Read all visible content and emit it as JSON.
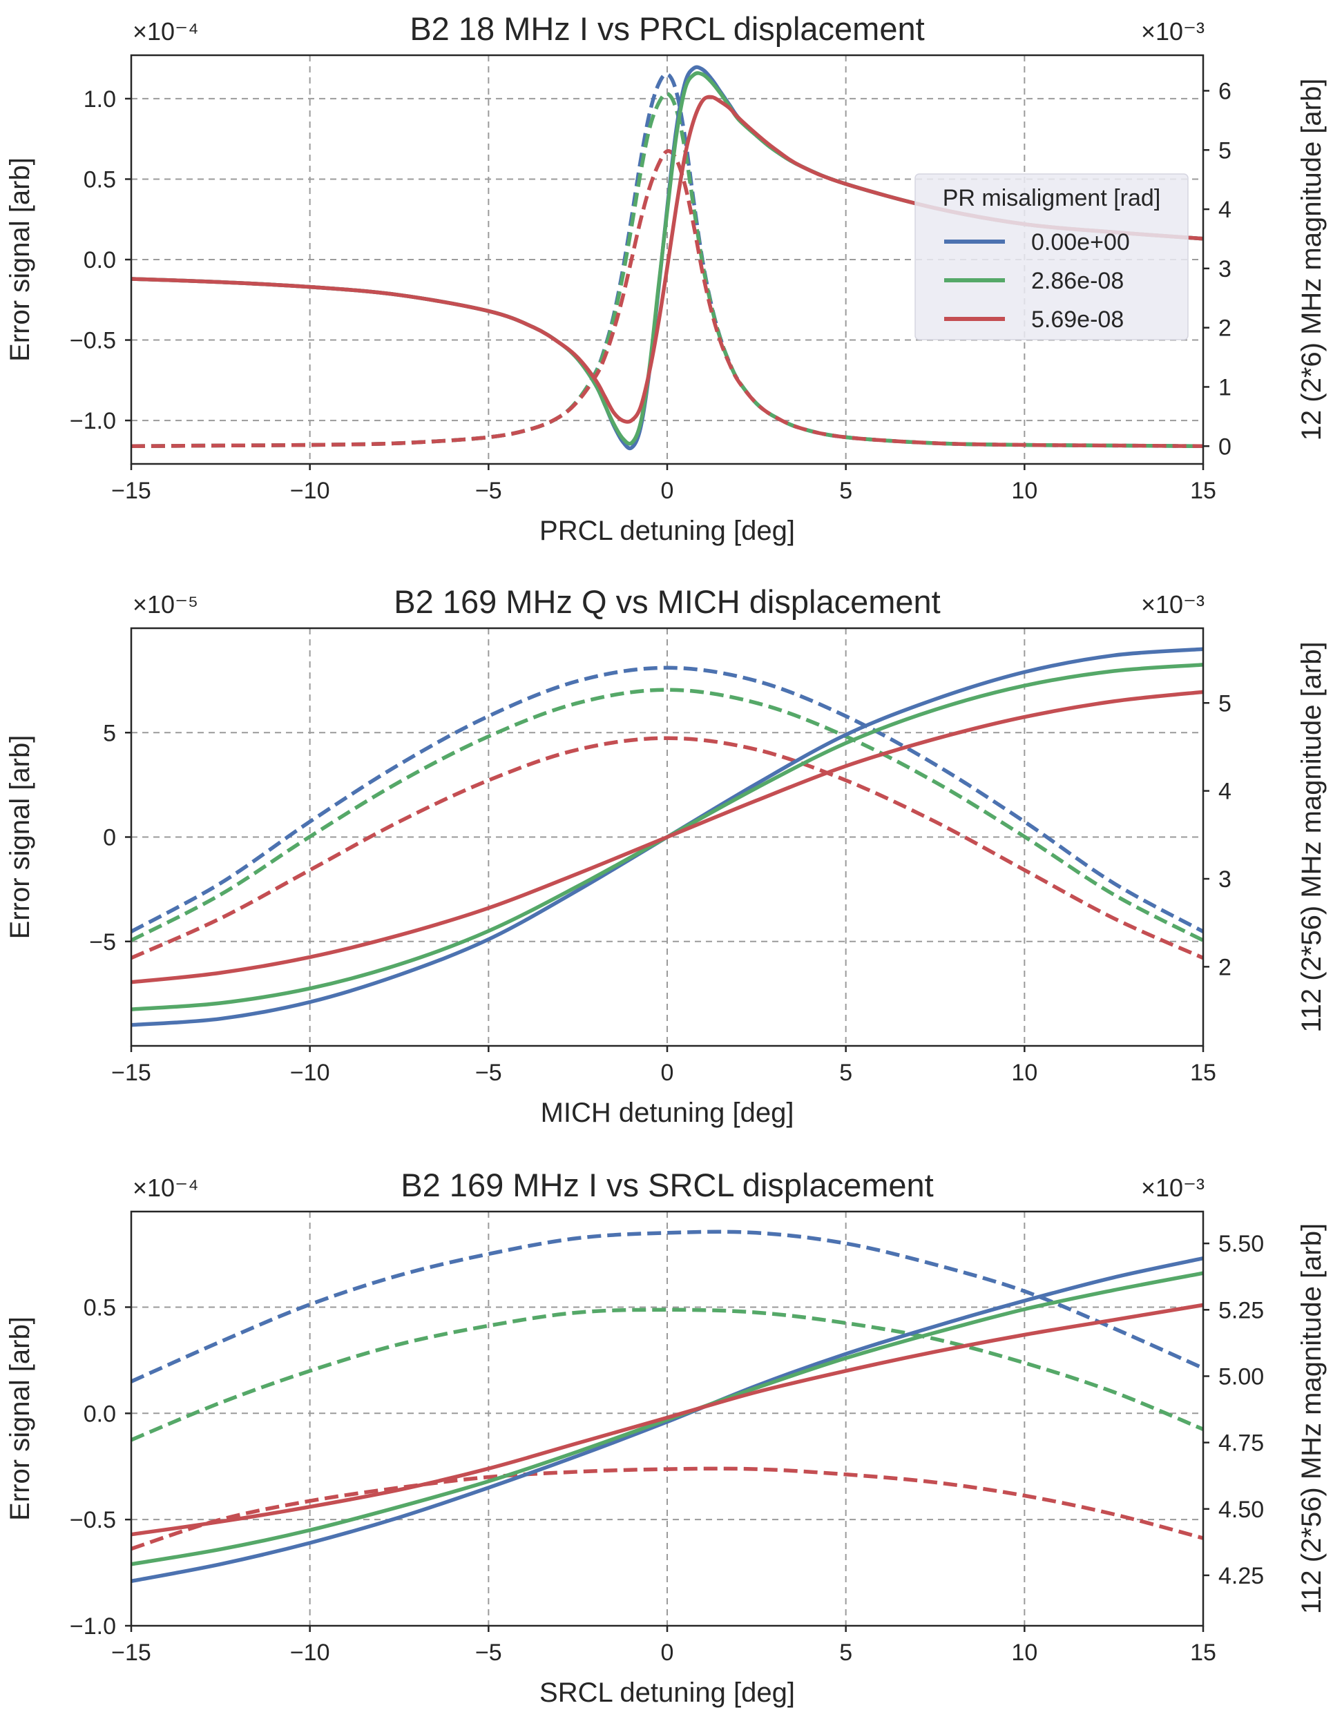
{
  "figure": {
    "legend": {
      "title": "PR misaligment [rad]",
      "entries": [
        "0.00e+00",
        "2.86e-08",
        "5.69e-08"
      ],
      "placement": "center-right of top panel"
    },
    "series_colors": [
      "#4c72b0",
      "#55a868",
      "#c44e52"
    ],
    "styles": {
      "error_signal": "solid",
      "magnitude": "dashed"
    }
  },
  "chart_data": [
    {
      "type": "line",
      "title": "B2 18 MHz I vs PRCL displacement",
      "xlabel": "PRCL detuning [deg]",
      "ylabel": "Error signal [arb]",
      "y2label": "12 (2*6) MHz magnitude [arb]",
      "xlim": [
        -15,
        15
      ],
      "ylim": [
        -1.27,
        1.27
      ],
      "y2lim": [
        -0.3,
        6.6
      ],
      "left_multiplier": "×10⁻⁴",
      "right_multiplier": "×10⁻³",
      "xticks": [
        -15,
        -10,
        -5,
        0,
        5,
        10,
        15
      ],
      "xtick_labels": [
        "−15",
        "−10",
        "−5",
        "0",
        "5",
        "10",
        "15"
      ],
      "yticks": [
        -1.0,
        -0.5,
        0.0,
        0.5,
        1.0
      ],
      "ytick_labels": [
        "−1.0",
        "−0.5",
        "0.0",
        "0.5",
        "1.0"
      ],
      "y2ticks": [
        0,
        1,
        2,
        3,
        4,
        5,
        6
      ],
      "y2tick_labels": [
        "0",
        "1",
        "2",
        "3",
        "4",
        "5",
        "6"
      ],
      "grid": true,
      "x": [
        -15,
        -12.5,
        -10,
        -7.5,
        -5,
        -3.75,
        -3,
        -2.5,
        -2,
        -1.75,
        -1.5,
        -1.25,
        -1,
        -0.75,
        -0.5,
        -0.25,
        0,
        0.25,
        0.5,
        0.75,
        1,
        1.25,
        1.5,
        1.75,
        2,
        2.5,
        3,
        3.75,
        5,
        7.5,
        10,
        12.5,
        15
      ],
      "series": [
        {
          "name": "0.00e+00",
          "axis": "left",
          "style": "solid",
          "values": [
            -0.12,
            -0.14,
            -0.17,
            -0.22,
            -0.32,
            -0.42,
            -0.52,
            -0.62,
            -0.78,
            -0.9,
            -1.03,
            -1.13,
            -1.17,
            -1.05,
            -0.7,
            -0.2,
            0.32,
            0.8,
            1.1,
            1.19,
            1.18,
            1.12,
            1.04,
            0.96,
            0.88,
            0.77,
            0.68,
            0.58,
            0.47,
            0.32,
            0.22,
            0.17,
            0.13
          ]
        },
        {
          "name": "2.86e-08",
          "axis": "left",
          "style": "solid",
          "values": [
            -0.12,
            -0.14,
            -0.17,
            -0.22,
            -0.32,
            -0.42,
            -0.52,
            -0.62,
            -0.78,
            -0.9,
            -1.02,
            -1.11,
            -1.14,
            -1.02,
            -0.68,
            -0.18,
            0.3,
            0.76,
            1.06,
            1.15,
            1.15,
            1.1,
            1.03,
            0.95,
            0.87,
            0.77,
            0.68,
            0.58,
            0.47,
            0.32,
            0.22,
            0.17,
            0.13
          ]
        },
        {
          "name": "5.69e-08",
          "axis": "left",
          "style": "solid",
          "values": [
            -0.12,
            -0.14,
            -0.17,
            -0.22,
            -0.32,
            -0.42,
            -0.52,
            -0.61,
            -0.75,
            -0.85,
            -0.95,
            -1.0,
            -1.0,
            -0.92,
            -0.7,
            -0.4,
            -0.05,
            0.32,
            0.65,
            0.87,
            0.99,
            1.01,
            0.98,
            0.94,
            0.88,
            0.78,
            0.69,
            0.58,
            0.47,
            0.32,
            0.22,
            0.17,
            0.13
          ]
        },
        {
          "name": "0.00e+00 magnitude",
          "axis": "right",
          "style": "dashed",
          "values": [
            0.0,
            0.01,
            0.02,
            0.05,
            0.15,
            0.3,
            0.5,
            0.78,
            1.25,
            1.65,
            2.2,
            2.95,
            3.85,
            4.8,
            5.6,
            6.1,
            6.28,
            6.0,
            5.2,
            4.1,
            3.1,
            2.35,
            1.8,
            1.4,
            1.1,
            0.72,
            0.5,
            0.3,
            0.15,
            0.05,
            0.02,
            0.01,
            0.0
          ]
        },
        {
          "name": "2.86e-08 magnitude",
          "axis": "right",
          "style": "dashed",
          "values": [
            0.0,
            0.01,
            0.02,
            0.05,
            0.15,
            0.3,
            0.5,
            0.78,
            1.24,
            1.62,
            2.15,
            2.85,
            3.7,
            4.6,
            5.35,
            5.78,
            5.95,
            5.7,
            5.0,
            4.0,
            3.05,
            2.33,
            1.79,
            1.4,
            1.1,
            0.72,
            0.5,
            0.3,
            0.15,
            0.05,
            0.02,
            0.01,
            0.0
          ]
        },
        {
          "name": "5.69e-08 magnitude",
          "axis": "right",
          "style": "dashed",
          "values": [
            0.0,
            0.01,
            0.02,
            0.05,
            0.15,
            0.3,
            0.5,
            0.76,
            1.18,
            1.5,
            1.95,
            2.5,
            3.15,
            3.8,
            4.35,
            4.75,
            4.98,
            4.85,
            4.4,
            3.7,
            2.9,
            2.25,
            1.75,
            1.38,
            1.09,
            0.72,
            0.5,
            0.3,
            0.15,
            0.05,
            0.02,
            0.01,
            0.0
          ]
        }
      ]
    },
    {
      "type": "line",
      "title": "B2 169 MHz Q vs MICH displacement",
      "xlabel": "MICH detuning [deg]",
      "ylabel": "Error signal [arb]",
      "y2label": "112 (2*56) MHz magnitude [arb]",
      "xlim": [
        -15,
        15
      ],
      "ylim": [
        -10,
        10
      ],
      "y2lim": [
        1.1,
        5.85
      ],
      "left_multiplier": "×10⁻⁵",
      "right_multiplier": "×10⁻³",
      "xticks": [
        -15,
        -10,
        -5,
        0,
        5,
        10,
        15
      ],
      "xtick_labels": [
        "−15",
        "−10",
        "−5",
        "0",
        "5",
        "10",
        "15"
      ],
      "yticks": [
        -5,
        0,
        5
      ],
      "ytick_labels": [
        "−5",
        "0",
        "5"
      ],
      "y2ticks": [
        2,
        3,
        4,
        5
      ],
      "y2tick_labels": [
        "2",
        "3",
        "4",
        "5"
      ],
      "grid": true,
      "x": [
        -15,
        -12.5,
        -10,
        -7.5,
        -5,
        -2.5,
        0,
        2.5,
        5,
        7.5,
        10,
        12.5,
        15
      ],
      "series": [
        {
          "name": "0.00e+00",
          "axis": "left",
          "style": "solid",
          "values": [
            -9.0,
            -8.7,
            -7.9,
            -6.6,
            -4.9,
            -2.55,
            0.0,
            2.55,
            4.9,
            6.6,
            7.9,
            8.7,
            9.0
          ]
        },
        {
          "name": "2.86e-08",
          "axis": "left",
          "style": "solid",
          "values": [
            -8.25,
            -7.95,
            -7.25,
            -6.1,
            -4.5,
            -2.35,
            0.0,
            2.35,
            4.5,
            6.1,
            7.25,
            7.95,
            8.25
          ]
        },
        {
          "name": "5.69e-08",
          "axis": "left",
          "style": "solid",
          "values": [
            -6.95,
            -6.5,
            -5.75,
            -4.7,
            -3.4,
            -1.75,
            0.0,
            1.75,
            3.4,
            4.7,
            5.75,
            6.5,
            6.95
          ]
        },
        {
          "name": "0.00e+00 magnitude",
          "axis": "right",
          "style": "dashed",
          "values": [
            2.4,
            2.95,
            3.65,
            4.3,
            4.85,
            5.25,
            5.4,
            5.25,
            4.85,
            4.3,
            3.65,
            2.95,
            2.4
          ]
        },
        {
          "name": "2.86e-08 magnitude",
          "axis": "right",
          "style": "dashed",
          "values": [
            2.3,
            2.82,
            3.48,
            4.1,
            4.62,
            5.0,
            5.15,
            5.0,
            4.62,
            4.1,
            3.48,
            2.82,
            2.3
          ]
        },
        {
          "name": "5.69e-08 magnitude",
          "axis": "right",
          "style": "dashed",
          "values": [
            2.1,
            2.55,
            3.1,
            3.65,
            4.12,
            4.47,
            4.6,
            4.47,
            4.12,
            3.65,
            3.1,
            2.55,
            2.1
          ]
        }
      ]
    },
    {
      "type": "line",
      "title": "B2 169 MHz I vs SRCL displacement",
      "xlabel": "SRCL detuning [deg]",
      "ylabel": "Error signal [arb]",
      "y2label": "112 (2*56) MHz magnitude [arb]",
      "xlim": [
        -15,
        15
      ],
      "ylim": [
        -1.0,
        0.95
      ],
      "y2lim": [
        4.06,
        5.62
      ],
      "left_multiplier": "×10⁻⁴",
      "right_multiplier": "×10⁻³",
      "xticks": [
        -15,
        -10,
        -5,
        0,
        5,
        10,
        15
      ],
      "xtick_labels": [
        "−15",
        "−10",
        "−5",
        "0",
        "5",
        "10",
        "15"
      ],
      "yticks": [
        -1.0,
        -0.5,
        0.0,
        0.5
      ],
      "ytick_labels": [
        "−1.0",
        "−0.5",
        "0.0",
        "0.5"
      ],
      "y2ticks": [
        4.25,
        4.5,
        4.75,
        5.0,
        5.25,
        5.5
      ],
      "y2tick_labels": [
        "4.25",
        "4.50",
        "4.75",
        "5.00",
        "5.25",
        "5.50"
      ],
      "grid": true,
      "x": [
        -15,
        -12.5,
        -10,
        -7.5,
        -5,
        -2.5,
        0,
        2.5,
        5,
        7.5,
        10,
        12.5,
        15
      ],
      "series": [
        {
          "name": "0.00e+00",
          "axis": "left",
          "style": "solid",
          "values": [
            -0.79,
            -0.71,
            -0.61,
            -0.49,
            -0.35,
            -0.2,
            -0.04,
            0.13,
            0.28,
            0.41,
            0.53,
            0.64,
            0.73
          ]
        },
        {
          "name": "2.86e-08",
          "axis": "left",
          "style": "solid",
          "values": [
            -0.71,
            -0.64,
            -0.55,
            -0.44,
            -0.32,
            -0.18,
            -0.03,
            0.12,
            0.26,
            0.38,
            0.49,
            0.58,
            0.66
          ]
        },
        {
          "name": "5.69e-08",
          "axis": "left",
          "style": "solid",
          "values": [
            -0.57,
            -0.51,
            -0.44,
            -0.36,
            -0.26,
            -0.14,
            -0.02,
            0.1,
            0.2,
            0.29,
            0.37,
            0.44,
            0.51
          ]
        },
        {
          "name": "0.00e+00 magnitude",
          "axis": "right",
          "style": "dashed",
          "values": [
            4.98,
            5.13,
            5.27,
            5.38,
            5.46,
            5.52,
            5.54,
            5.54,
            5.5,
            5.42,
            5.32,
            5.18,
            5.03
          ]
        },
        {
          "name": "2.86e-08 magnitude",
          "axis": "right",
          "style": "dashed",
          "values": [
            4.76,
            4.9,
            5.02,
            5.12,
            5.19,
            5.24,
            5.25,
            5.24,
            5.2,
            5.14,
            5.05,
            4.94,
            4.8
          ]
        },
        {
          "name": "5.69e-08 magnitude",
          "axis": "right",
          "style": "dashed",
          "values": [
            4.35,
            4.46,
            4.53,
            4.58,
            4.62,
            4.64,
            4.65,
            4.65,
            4.63,
            4.6,
            4.55,
            4.48,
            4.39
          ]
        }
      ]
    }
  ]
}
